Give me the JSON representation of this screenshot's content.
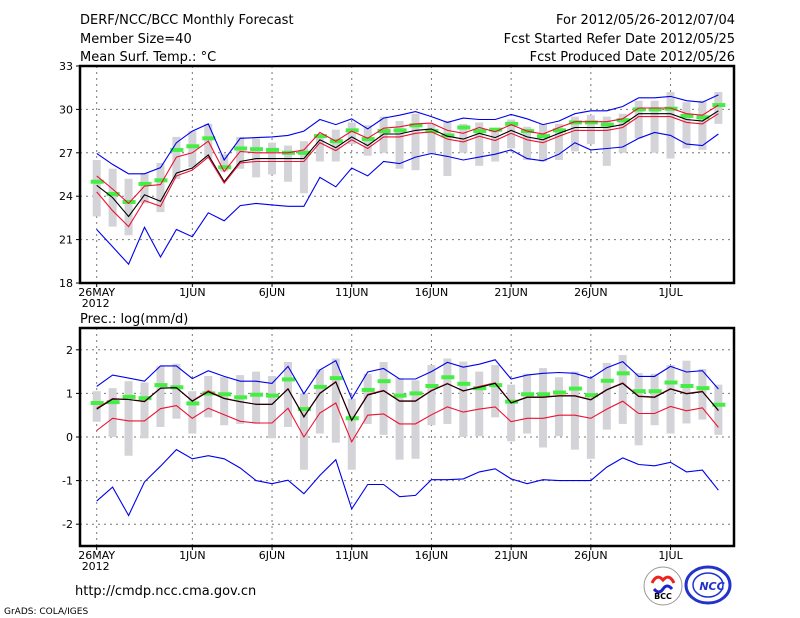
{
  "header": {
    "title": "DERF/NCC/BCC Monthly Forecast",
    "member_size": "Member Size=40",
    "variable": "Mean Surf. Temp.: °C",
    "period": "For 2012/05/26-2012/07/04",
    "start_date": "Fcst Started Refer Date 2012/05/25",
    "produced_date": "Fcst Produced Date 2012/05/26"
  },
  "footer": {
    "url": "http://cmdp.ncc.cma.gov.cn",
    "grads": "GrADS: COLA/IGES",
    "logo_bcc": "BCC",
    "logo_ncc": "NCC"
  },
  "colors": {
    "gray_bar": "#d3d3d8",
    "green": "#44ee44",
    "black": "#000000",
    "red": "#ee1133",
    "blue": "#0000ee"
  },
  "chart_data": [
    {
      "type": "line",
      "title": "Mean Surf. Temp.: °C",
      "ylim": [
        18,
        33
      ],
      "yticks": [
        18,
        21,
        24,
        27,
        30,
        33
      ],
      "grid": true,
      "n_days": 40,
      "xticks": [
        {
          "index": 0,
          "label": "26MAY"
        },
        {
          "index": 6,
          "label": "1JUN"
        },
        {
          "index": 11,
          "label": "6JUN"
        },
        {
          "index": 16,
          "label": "11JUN"
        },
        {
          "index": 21,
          "label": "16JUN"
        },
        {
          "index": 26,
          "label": "21JUN"
        },
        {
          "index": 31,
          "label": "26JUN"
        },
        {
          "index": 36,
          "label": "1JUL"
        }
      ],
      "year_label": "2012",
      "bars_low": [
        22.6,
        21.9,
        21.3,
        23.5,
        22.9,
        25.2,
        26.0,
        26.6,
        25.7,
        25.9,
        25.3,
        25.5,
        25.0,
        24.2,
        26.4,
        26.4,
        27.6,
        26.8,
        27.0,
        25.9,
        25.8,
        26.9,
        25.4,
        27.0,
        26.1,
        26.4,
        27.3,
        26.5,
        26.4,
        26.5,
        27.1,
        27.6,
        26.1,
        27.0,
        28.0,
        27.0,
        26.6,
        27.3,
        27.2,
        29.0
      ],
      "bars_high": [
        26.5,
        25.9,
        25.2,
        25.6,
        26.3,
        28.1,
        28.5,
        29.0,
        26.9,
        28.1,
        28.0,
        27.7,
        27.5,
        27.8,
        28.3,
        28.6,
        29.1,
        28.9,
        29.5,
        29.2,
        29.7,
        29.0,
        29.2,
        29.0,
        29.1,
        28.5,
        29.3,
        28.8,
        29.0,
        29.0,
        29.5,
        29.6,
        29.5,
        29.7,
        30.6,
        30.6,
        31.2,
        30.5,
        30.6,
        31.2
      ],
      "series": [
        {
          "name": "green-marker",
          "values": [
            25.0,
            24.15,
            23.6,
            24.85,
            25.1,
            27.2,
            27.45,
            28.0,
            26.0,
            27.3,
            27.25,
            27.2,
            27.0,
            27.0,
            28.15,
            27.8,
            28.55,
            27.95,
            28.5,
            28.55,
            28.9,
            28.5,
            28.2,
            28.75,
            28.5,
            28.6,
            29.0,
            28.5,
            28.15,
            28.55,
            29.1,
            29.1,
            28.95,
            29.25,
            30.0,
            30.0,
            30.05,
            29.55,
            29.45,
            30.3
          ]
        },
        {
          "name": "blue-upper",
          "values": [
            26.96,
            26.2,
            25.55,
            25.55,
            25.97,
            27.7,
            28.5,
            29.0,
            26.5,
            28.0,
            28.05,
            28.1,
            28.2,
            28.5,
            29.3,
            28.95,
            29.35,
            28.65,
            29.4,
            29.6,
            29.85,
            29.5,
            29.1,
            29.4,
            29.3,
            29.3,
            29.65,
            29.35,
            28.95,
            29.2,
            29.7,
            29.9,
            29.9,
            30.2,
            30.8,
            30.8,
            30.9,
            30.6,
            30.5,
            31.0
          ]
        },
        {
          "name": "red-upper",
          "values": [
            25.4,
            24.5,
            23.5,
            24.7,
            24.8,
            26.7,
            27.0,
            27.8,
            25.7,
            27.1,
            27.0,
            27.0,
            27.0,
            27.2,
            28.4,
            27.8,
            28.5,
            28.0,
            28.7,
            28.8,
            29.0,
            29.05,
            28.55,
            28.35,
            28.75,
            28.45,
            28.95,
            28.5,
            28.3,
            28.75,
            29.15,
            29.15,
            29.15,
            29.35,
            30.1,
            30.1,
            30.1,
            29.7,
            29.6,
            30.3
          ]
        },
        {
          "name": "black-mean",
          "values": [
            24.75,
            23.9,
            22.6,
            24.1,
            23.65,
            25.6,
            25.95,
            26.85,
            25.0,
            26.4,
            26.6,
            26.6,
            26.6,
            26.6,
            27.9,
            27.35,
            28.1,
            27.5,
            28.3,
            28.3,
            28.55,
            28.65,
            28.15,
            27.95,
            28.35,
            28.05,
            28.55,
            28.1,
            27.9,
            28.35,
            28.75,
            28.75,
            28.75,
            28.95,
            29.7,
            29.7,
            29.7,
            29.3,
            29.2,
            29.9
          ]
        },
        {
          "name": "red-lower",
          "values": [
            24.3,
            23.0,
            21.9,
            23.7,
            23.3,
            25.4,
            25.8,
            26.7,
            24.9,
            26.3,
            26.4,
            26.4,
            26.4,
            26.4,
            27.7,
            27.15,
            27.9,
            27.3,
            28.1,
            28.1,
            28.35,
            28.45,
            27.95,
            27.75,
            28.15,
            27.85,
            28.35,
            27.9,
            27.7,
            28.15,
            28.55,
            28.55,
            28.55,
            28.75,
            29.5,
            29.5,
            29.5,
            29.1,
            29.0,
            29.7
          ]
        },
        {
          "name": "blue-lower",
          "values": [
            21.7,
            20.5,
            19.3,
            21.85,
            19.8,
            21.7,
            21.2,
            22.85,
            22.3,
            23.35,
            23.5,
            23.4,
            23.3,
            23.3,
            25.3,
            24.65,
            25.95,
            25.4,
            26.4,
            26.25,
            26.7,
            26.95,
            26.75,
            26.5,
            26.7,
            26.9,
            27.2,
            26.6,
            26.45,
            26.9,
            27.7,
            27.2,
            27.3,
            27.4,
            28.0,
            28.4,
            28.2,
            27.6,
            27.5,
            28.3
          ]
        }
      ]
    },
    {
      "type": "line",
      "title": "Prec.: log(mm/d)",
      "ylim": [
        -2.5,
        2.5
      ],
      "yticks": [
        -2,
        -1,
        0,
        1,
        2
      ],
      "grid": true,
      "n_days": 40,
      "xticks": [
        {
          "index": 0,
          "label": "26MAY"
        },
        {
          "index": 6,
          "label": "1JUN"
        },
        {
          "index": 11,
          "label": "6JUN"
        },
        {
          "index": 16,
          "label": "11JUN"
        },
        {
          "index": 21,
          "label": "16JUN"
        },
        {
          "index": 26,
          "label": "21JUN"
        },
        {
          "index": 31,
          "label": "26JUN"
        },
        {
          "index": 36,
          "label": "1JUL"
        }
      ],
      "year_label": "2012",
      "bars_low": [
        0.35,
        0.0,
        -0.43,
        -0.03,
        0.23,
        0.42,
        0.08,
        0.45,
        0.27,
        0.3,
        0.3,
        -0.03,
        0.23,
        -0.75,
        0.08,
        -0.13,
        -0.75,
        0.3,
        0.05,
        -0.52,
        -0.5,
        0.27,
        0.3,
        0.0,
        0.02,
        0.45,
        -0.1,
        0.08,
        -0.24,
        0.02,
        -0.29,
        -0.5,
        0.17,
        0.3,
        -0.19,
        0.27,
        0.08,
        0.31,
        0.4,
        0.05
      ],
      "bars_high": [
        1.05,
        1.12,
        1.28,
        1.25,
        1.62,
        1.68,
        1.05,
        1.4,
        1.38,
        1.42,
        1.5,
        1.4,
        1.72,
        1.0,
        1.55,
        1.8,
        0.88,
        1.45,
        1.72,
        1.35,
        1.3,
        1.65,
        1.8,
        1.73,
        1.5,
        1.65,
        1.2,
        1.45,
        1.58,
        1.37,
        1.5,
        1.35,
        1.7,
        1.88,
        1.47,
        1.45,
        1.65,
        1.75,
        1.56,
        1.2
      ],
      "series": [
        {
          "name": "green-marker",
          "values": [
            0.78,
            0.8,
            0.92,
            0.89,
            1.19,
            1.14,
            0.77,
            1.0,
            0.98,
            0.91,
            0.97,
            0.95,
            1.32,
            0.64,
            1.15,
            1.35,
            0.43,
            1.08,
            1.28,
            0.95,
            1.0,
            1.17,
            1.37,
            1.22,
            1.12,
            1.19,
            0.81,
            0.98,
            0.98,
            1.02,
            1.11,
            0.96,
            1.29,
            1.46,
            1.05,
            1.05,
            1.25,
            1.17,
            1.12,
            0.74
          ]
        },
        {
          "name": "blue-upper",
          "values": [
            1.16,
            1.42,
            1.35,
            1.28,
            1.63,
            1.63,
            1.34,
            1.52,
            1.39,
            1.28,
            1.28,
            1.23,
            1.62,
            0.99,
            1.54,
            1.75,
            0.88,
            1.49,
            1.57,
            1.33,
            1.33,
            1.5,
            1.71,
            1.6,
            1.67,
            1.77,
            1.33,
            1.42,
            1.46,
            1.48,
            1.46,
            1.35,
            1.59,
            1.73,
            1.39,
            1.39,
            1.62,
            1.49,
            1.52,
            1.1
          ]
        },
        {
          "name": "red-upper",
          "values": [
            0.66,
            0.88,
            0.86,
            0.82,
            1.12,
            1.13,
            0.83,
            1.06,
            0.89,
            0.81,
            0.75,
            0.75,
            1.11,
            0.47,
            1.01,
            1.27,
            0.39,
            0.98,
            1.07,
            0.83,
            0.83,
            1.07,
            1.23,
            1.05,
            1.16,
            1.24,
            0.79,
            0.92,
            0.92,
            0.95,
            0.95,
            0.86,
            1.09,
            1.24,
            0.94,
            0.92,
            1.11,
            1.0,
            1.05,
            0.6
          ]
        },
        {
          "name": "black-mean",
          "values": [
            0.64,
            0.87,
            0.86,
            0.81,
            1.12,
            1.13,
            0.82,
            1.04,
            0.88,
            0.81,
            0.75,
            0.75,
            1.1,
            0.46,
            1.0,
            1.26,
            0.38,
            0.96,
            1.06,
            0.82,
            0.82,
            1.06,
            1.22,
            1.06,
            1.14,
            1.23,
            0.78,
            0.91,
            0.91,
            0.94,
            0.94,
            0.85,
            1.08,
            1.23,
            0.93,
            0.91,
            1.1,
            0.99,
            1.04,
            0.61
          ]
        },
        {
          "name": "red-lower",
          "values": [
            0.15,
            0.43,
            0.37,
            0.37,
            0.65,
            0.72,
            0.43,
            0.66,
            0.51,
            0.36,
            0.32,
            0.32,
            0.66,
            0.0,
            0.55,
            0.78,
            -0.11,
            0.5,
            0.53,
            0.3,
            0.3,
            0.51,
            0.69,
            0.57,
            0.64,
            0.69,
            0.35,
            0.43,
            0.43,
            0.5,
            0.5,
            0.43,
            0.64,
            0.82,
            0.54,
            0.54,
            0.7,
            0.6,
            0.67,
            0.22
          ]
        },
        {
          "name": "blue-lower",
          "values": [
            -1.47,
            -1.15,
            -1.8,
            -1.03,
            -0.67,
            -0.29,
            -0.5,
            -0.43,
            -0.5,
            -0.71,
            -1.0,
            -1.07,
            -0.99,
            -1.3,
            -0.88,
            -0.52,
            -1.65,
            -1.09,
            -1.09,
            -1.37,
            -1.34,
            -0.98,
            -0.98,
            -0.96,
            -0.8,
            -0.73,
            -0.96,
            -1.07,
            -0.98,
            -1.0,
            -1.0,
            -1.0,
            -0.69,
            -0.48,
            -0.63,
            -0.66,
            -0.58,
            -0.8,
            -0.76,
            -1.22
          ]
        }
      ]
    }
  ]
}
